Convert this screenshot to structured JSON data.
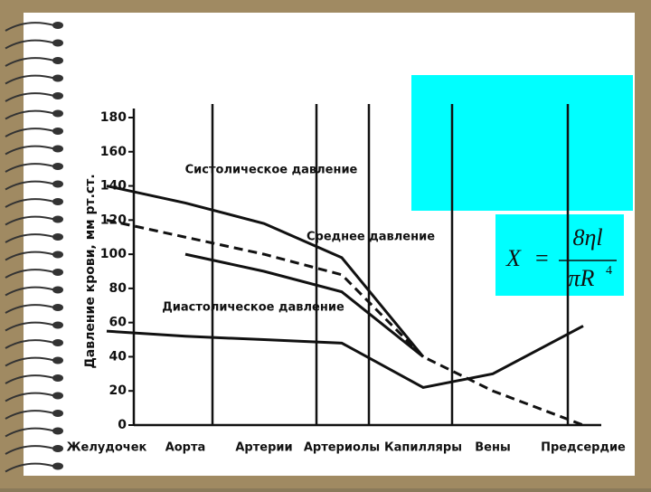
{
  "chart_data": {
    "type": "line",
    "y_label": "Давление крови, мм рт.ст.",
    "categories": [
      "Желудочек",
      "Аорта",
      "Артерии",
      "Артериолы",
      "Капилляры",
      "Вены",
      "Предсердие"
    ],
    "ylim": [
      0,
      180
    ],
    "yticks": [
      0,
      20,
      40,
      60,
      80,
      100,
      120,
      140,
      160,
      180
    ],
    "series": [
      {
        "name": "Систолическое давление",
        "color": "#111111",
        "dashed": false,
        "values": [
          140,
          130,
          118,
          98,
          40,
          null,
          null
        ]
      },
      {
        "name": "Среднее давление",
        "color": "#111111",
        "dashed": true,
        "values": [
          120,
          110,
          100,
          88,
          40,
          20,
          0
        ]
      },
      {
        "name": "Диастолическое давление",
        "color": "#111111",
        "dashed": false,
        "values": [
          null,
          100,
          90,
          78,
          40,
          null,
          null
        ]
      },
      {
        "color": "#111111",
        "dashed": false,
        "values": [
          55,
          52,
          50,
          48,
          22,
          30,
          58
        ]
      }
    ]
  },
  "formula": {
    "lhs": "X",
    "equals": "=",
    "numerator": "8ηl",
    "denominator": "πR",
    "exponent": "4"
  }
}
